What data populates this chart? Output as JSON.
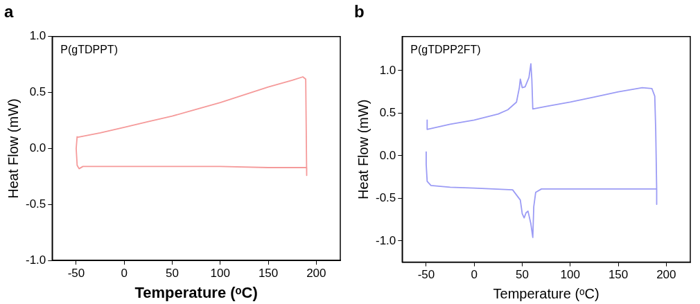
{
  "chart_data": [
    {
      "type": "line",
      "title": "a",
      "xlabel": "Temperature (ᵒC)",
      "ylabel": "Heat Flow (mW)",
      "annotations": [
        "P(gTDPPT)"
      ],
      "color": "#f59a9a",
      "x": [
        -49,
        -25,
        0,
        25,
        50,
        75,
        100,
        125,
        150,
        175,
        186,
        189,
        190,
        190,
        150,
        100,
        50,
        0,
        -43,
        -47,
        -49,
        -50,
        -49
      ],
      "values": [
        0.1,
        0.14,
        0.19,
        0.24,
        0.29,
        0.35,
        0.41,
        0.48,
        0.55,
        0.61,
        0.64,
        0.62,
        -0.24,
        -0.17,
        -0.17,
        -0.16,
        -0.16,
        -0.16,
        -0.16,
        -0.18,
        -0.15,
        0.0,
        0.11
      ],
      "xlim": [
        -75,
        225
      ],
      "xticks": [
        -50,
        0,
        50,
        100,
        150,
        200
      ],
      "ylim": [
        -1,
        1
      ],
      "yticks": [
        {
          "value": -1,
          "label": "-1.0"
        },
        {
          "value": -0.5,
          "label": "-0.5"
        },
        {
          "value": 0,
          "label": "0.0"
        },
        {
          "value": 0.5,
          "label": "0.5"
        },
        {
          "value": 1,
          "label": "1.0"
        }
      ]
    },
    {
      "type": "line",
      "title": "b",
      "xlabel": "Temperature (ᵒC)",
      "ylabel": "Heat Flow (mW)",
      "annotations": [
        "P(gTDPP2FT)"
      ],
      "color": "#9b9bf5",
      "x": [
        -49,
        -49,
        -25,
        0,
        25,
        35,
        44,
        47,
        48,
        50,
        53,
        57,
        59,
        60,
        61,
        75,
        100,
        125,
        150,
        175,
        185,
        188,
        189,
        190,
        190,
        190,
        150,
        100,
        70,
        64,
        62,
        61,
        59,
        56,
        54,
        52,
        50,
        48,
        40,
        0,
        -25,
        -45,
        -49,
        -50,
        -50
      ],
      "values": [
        0.42,
        0.31,
        0.37,
        0.42,
        0.49,
        0.54,
        0.63,
        0.8,
        0.9,
        0.8,
        0.81,
        0.92,
        1.08,
        0.9,
        0.55,
        0.58,
        0.63,
        0.69,
        0.75,
        0.8,
        0.79,
        0.7,
        0.3,
        -0.4,
        -0.57,
        -0.39,
        -0.39,
        -0.39,
        -0.39,
        -0.43,
        -0.6,
        -0.96,
        -0.8,
        -0.65,
        -0.67,
        -0.73,
        -0.68,
        -0.52,
        -0.4,
        -0.38,
        -0.37,
        -0.35,
        -0.3,
        -0.1,
        0.05
      ],
      "xlim": [
        -75,
        225
      ],
      "xticks": [
        -50,
        0,
        50,
        100,
        150,
        200
      ],
      "ylim": [
        -1.25,
        1.4
      ],
      "yticks": [
        {
          "value": -1,
          "label": "-1.0"
        },
        {
          "value": -0.5,
          "label": "-0.5"
        },
        {
          "value": 0,
          "label": "0.0"
        },
        {
          "value": 0.5,
          "label": "0.5"
        },
        {
          "value": 1,
          "label": "1.0"
        }
      ]
    }
  ]
}
